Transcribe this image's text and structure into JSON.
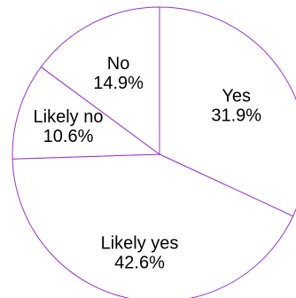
{
  "chart_data": {
    "type": "pie",
    "start_angle_deg": 0,
    "direction": "clockwise",
    "slice_border_color": "#9932CC",
    "slice_fill_color": "#ffffff",
    "slices": [
      {
        "category": "Yes",
        "value": 31.9,
        "value_label": "31.9%"
      },
      {
        "category": "Likely yes",
        "value": 42.6,
        "value_label": "42.6%"
      },
      {
        "category": "Likely no",
        "value": 10.6,
        "value_label": "10.6%"
      },
      {
        "category": "No",
        "value": 14.9,
        "value_label": "14.9%"
      }
    ]
  }
}
